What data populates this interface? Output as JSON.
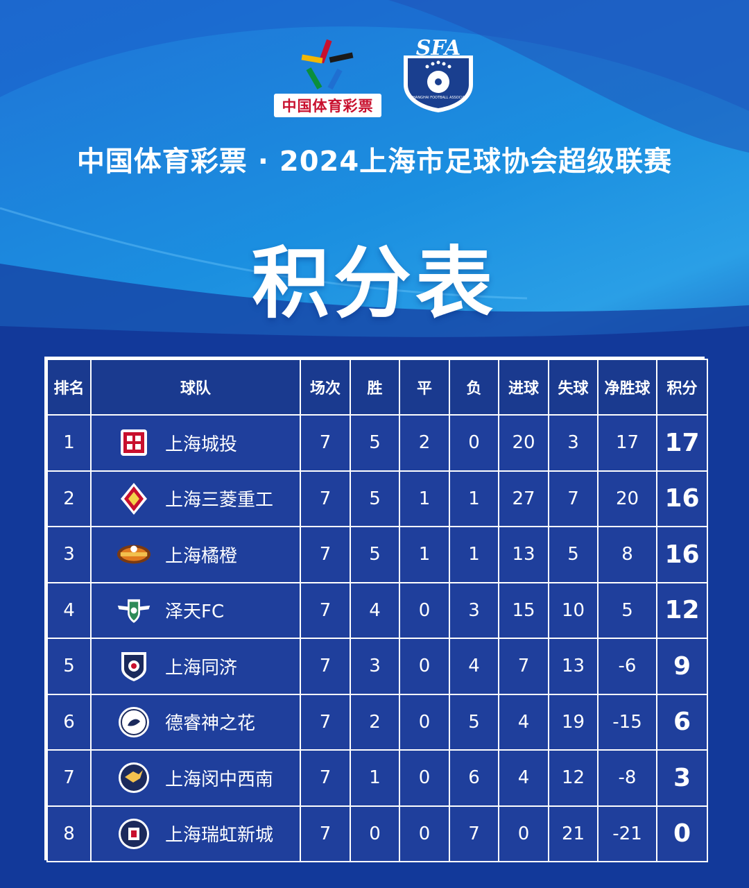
{
  "logos": {
    "lottery_caption": "中国体育彩票",
    "sfa_text": "SFA",
    "sfa_subtext": "SHANGHAI FOOTBALL ASSOCIATION"
  },
  "headline": "中国体育彩票 · 2024上海市足球协会超级联赛",
  "title": "积分表",
  "table": {
    "headers": [
      "排名",
      "球队",
      "场次",
      "胜",
      "平",
      "负",
      "进球",
      "失球",
      "净胜球",
      "积分"
    ],
    "rows": [
      {
        "rank": "1",
        "team": "上海城投",
        "badge": "red-square-crest-icon",
        "played": "7",
        "won": "5",
        "drawn": "2",
        "lost": "0",
        "gf": "20",
        "ga": "3",
        "gd": "17",
        "pts": "17"
      },
      {
        "rank": "2",
        "team": "上海三菱重工",
        "badge": "diamond-crest-icon",
        "played": "7",
        "won": "5",
        "drawn": "1",
        "lost": "1",
        "gf": "27",
        "ga": "7",
        "gd": "20",
        "pts": "16"
      },
      {
        "rank": "3",
        "team": "上海橘橙",
        "badge": "orange-banner-crest-icon",
        "played": "7",
        "won": "5",
        "drawn": "1",
        "lost": "1",
        "gf": "13",
        "ga": "5",
        "gd": "8",
        "pts": "16"
      },
      {
        "rank": "4",
        "team": "泽天FC",
        "badge": "winged-shield-crest-icon",
        "played": "7",
        "won": "4",
        "drawn": "0",
        "lost": "3",
        "gf": "15",
        "ga": "10",
        "gd": "5",
        "pts": "12"
      },
      {
        "rank": "5",
        "team": "上海同济",
        "badge": "navy-shield-crest-icon",
        "played": "7",
        "won": "3",
        "drawn": "0",
        "lost": "4",
        "gf": "7",
        "ga": "13",
        "gd": "-6",
        "pts": "9"
      },
      {
        "rank": "6",
        "team": "德睿神之花",
        "badge": "round-white-crest-icon",
        "played": "7",
        "won": "2",
        "drawn": "0",
        "lost": "5",
        "gf": "4",
        "ga": "19",
        "gd": "-15",
        "pts": "6"
      },
      {
        "rank": "7",
        "team": "上海闵中西南",
        "badge": "bird-round-crest-icon",
        "played": "7",
        "won": "1",
        "drawn": "0",
        "lost": "6",
        "gf": "4",
        "ga": "12",
        "gd": "-8",
        "pts": "3"
      },
      {
        "rank": "8",
        "team": "上海瑞虹新城",
        "badge": "ruihong-round-crest-icon",
        "played": "7",
        "won": "0",
        "drawn": "0",
        "lost": "7",
        "gf": "0",
        "ga": "21",
        "gd": "-21",
        "pts": "0"
      }
    ]
  }
}
